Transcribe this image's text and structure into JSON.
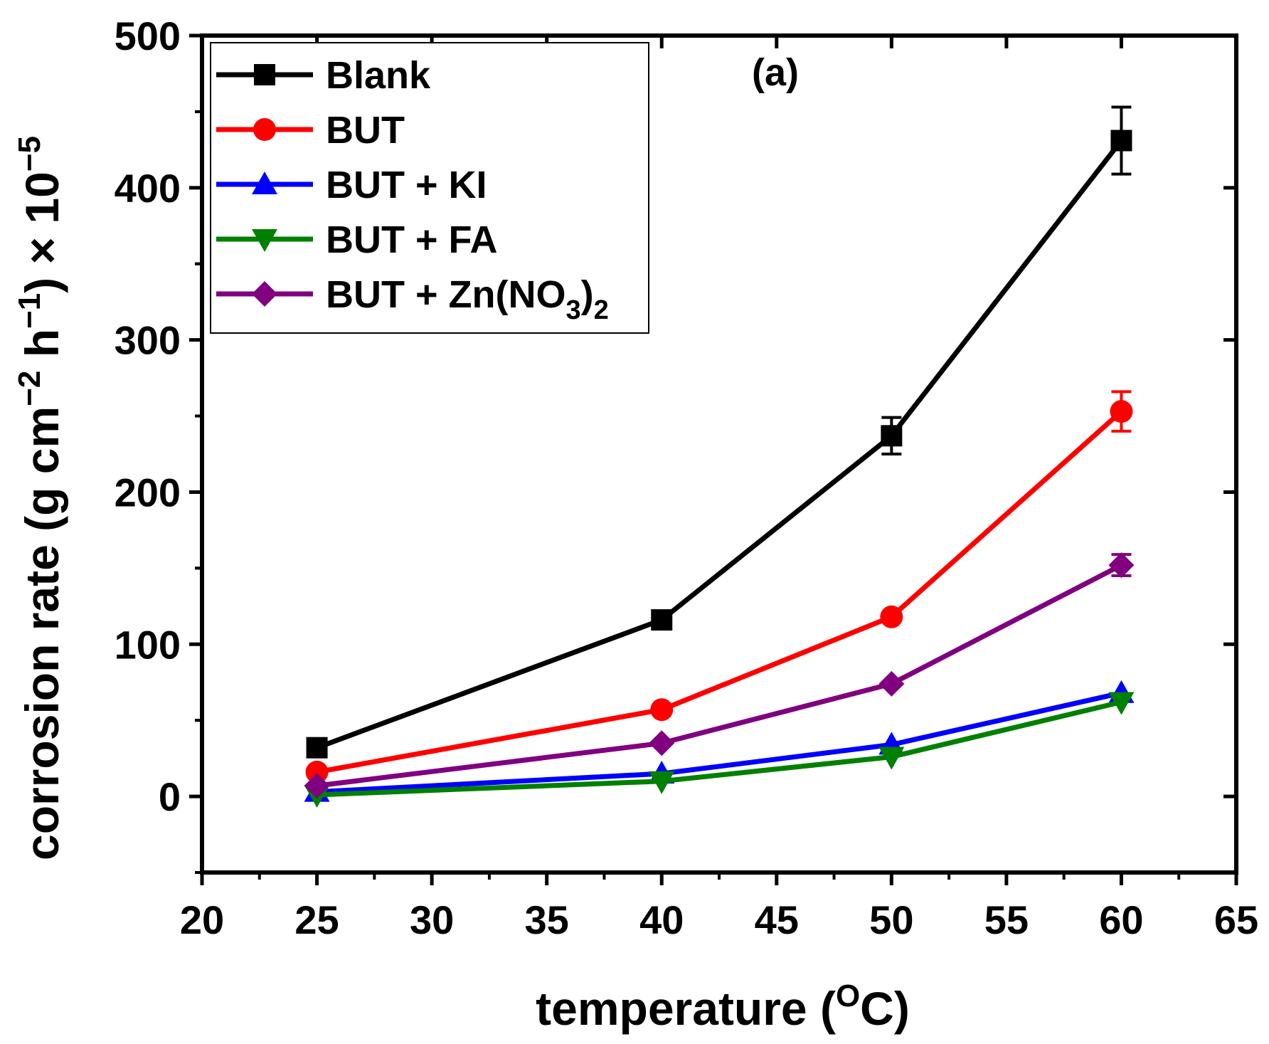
{
  "chart_data": {
    "type": "line",
    "panel_label": "(a)",
    "xlabel": {
      "main": "temperature (",
      "sup": "O",
      "tail": "C)"
    },
    "ylabel": {
      "prefix": "corrosion rate (g cm",
      "sup1": "−2",
      "mid": " h",
      "sup2": "−1",
      "suffix": ") × 10",
      "sup3": "−5"
    },
    "xlim": [
      20,
      65
    ],
    "ylim": [
      -50,
      500
    ],
    "xticks": [
      20,
      25,
      30,
      35,
      40,
      45,
      50,
      55,
      60,
      65
    ],
    "yticks": [
      0,
      100,
      200,
      300,
      400,
      500
    ],
    "x": [
      25,
      40,
      50,
      60
    ],
    "series": [
      {
        "name": "Blank",
        "label": "Blank",
        "color": "#000000",
        "marker": "square",
        "values": [
          32,
          116,
          237,
          431
        ],
        "errors": [
          0,
          0,
          12,
          22
        ]
      },
      {
        "name": "BUT",
        "label": "BUT",
        "color": "#ff0000",
        "marker": "circle",
        "values": [
          16,
          57,
          118,
          253
        ],
        "errors": [
          0,
          0,
          0,
          13
        ]
      },
      {
        "name": "BUT + KI",
        "label": "BUT + KI",
        "color": "#0000ff",
        "marker": "triangle-up",
        "values": [
          3,
          15,
          34,
          68
        ],
        "errors": [
          0,
          0,
          0,
          0
        ]
      },
      {
        "name": "BUT + FA",
        "label": "BUT + FA",
        "color": "#008000",
        "marker": "triangle-down",
        "values": [
          1,
          10,
          26,
          62
        ],
        "errors": [
          0,
          0,
          0,
          0
        ]
      },
      {
        "name": "BUT + Zn(NO3)2",
        "label": "BUT + Zn(NO",
        "label_sub1": "3",
        "label_tail": ")",
        "label_sub2": "2",
        "color": "#800080",
        "marker": "diamond",
        "values": [
          7,
          35,
          74,
          152
        ],
        "errors": [
          0,
          0,
          0,
          7
        ]
      }
    ],
    "legend_position": "top-left",
    "grid": false
  }
}
